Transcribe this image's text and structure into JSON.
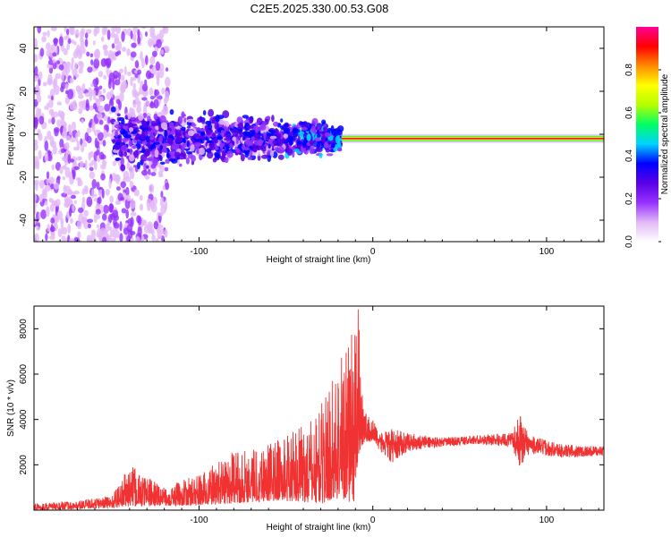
{
  "figure_title": "C2E5.2025.330.00.53.G08",
  "chart_data": [
    {
      "type": "heatmap",
      "title": "C2E5.2025.330.00.53.G08",
      "xlabel": "Height of straight line (km)",
      "ylabel": "Frequency (Hz)",
      "xlim": [
        -195,
        133
      ],
      "ylim": [
        -50,
        50
      ],
      "x_ticks": [
        -100,
        0,
        100
      ],
      "y_ticks": [
        -40,
        -20,
        0,
        20,
        40
      ],
      "colorbar": {
        "label": "Normalized spectral amplitude",
        "range": [
          0,
          1
        ],
        "ticks": [
          0.0,
          0.2,
          0.4,
          0.6,
          0.8
        ],
        "colormap": [
          "#ffffff",
          "#e2b8f7",
          "#9632ff",
          "#5a00e6",
          "#0000ff",
          "#00d2ff",
          "#00ff64",
          "#b4ff00",
          "#ffff00",
          "#ff8c00",
          "#ff0000",
          "#ff0096"
        ]
      },
      "description_values": {
        "noise_region_x": [
          -195,
          -118
        ],
        "scatter_region_x": [
          -150,
          -18
        ],
        "trace_start_x": -18,
        "trace_frequency_hz": -2
      }
    },
    {
      "type": "line",
      "xlabel": "Height of straight line (km)",
      "ylabel": "SNR (10 * v/v)",
      "xlim": [
        -195,
        133
      ],
      "ylim": [
        0,
        9000
      ],
      "x_ticks": [
        -100,
        0,
        100
      ],
      "y_ticks": [
        2000,
        4000,
        6000,
        8000
      ],
      "series": [
        {
          "name": "SNR",
          "color": "#f03232",
          "envelope": {
            "x": [
              -195,
              -170,
              -150,
              -140,
              -120,
              -100,
              -80,
              -60,
              -45,
              -35,
              -28,
              -22,
              -15,
              -11,
              -8,
              -5,
              0,
              5,
              10,
              20,
              40,
              60,
              80,
              85,
              90,
              110,
              133
            ],
            "low": [
              0,
              50,
              100,
              150,
              200,
              200,
              300,
              400,
              400,
              300,
              300,
              500,
              400,
              300,
              2500,
              3000,
              3000,
              2500,
              2000,
              2600,
              2800,
              2900,
              2800,
              1800,
              2500,
              2300,
              2400
            ],
            "high": [
              300,
              400,
              700,
              2000,
              1000,
              1600,
              2600,
              3000,
              3500,
              4000,
              5000,
              6200,
              7800,
              8000,
              9000,
              4500,
              4000,
              3400,
              3600,
              3400,
              3200,
              3300,
              3400,
              4300,
              3300,
              2900,
              2800
            ]
          }
        }
      ]
    }
  ]
}
